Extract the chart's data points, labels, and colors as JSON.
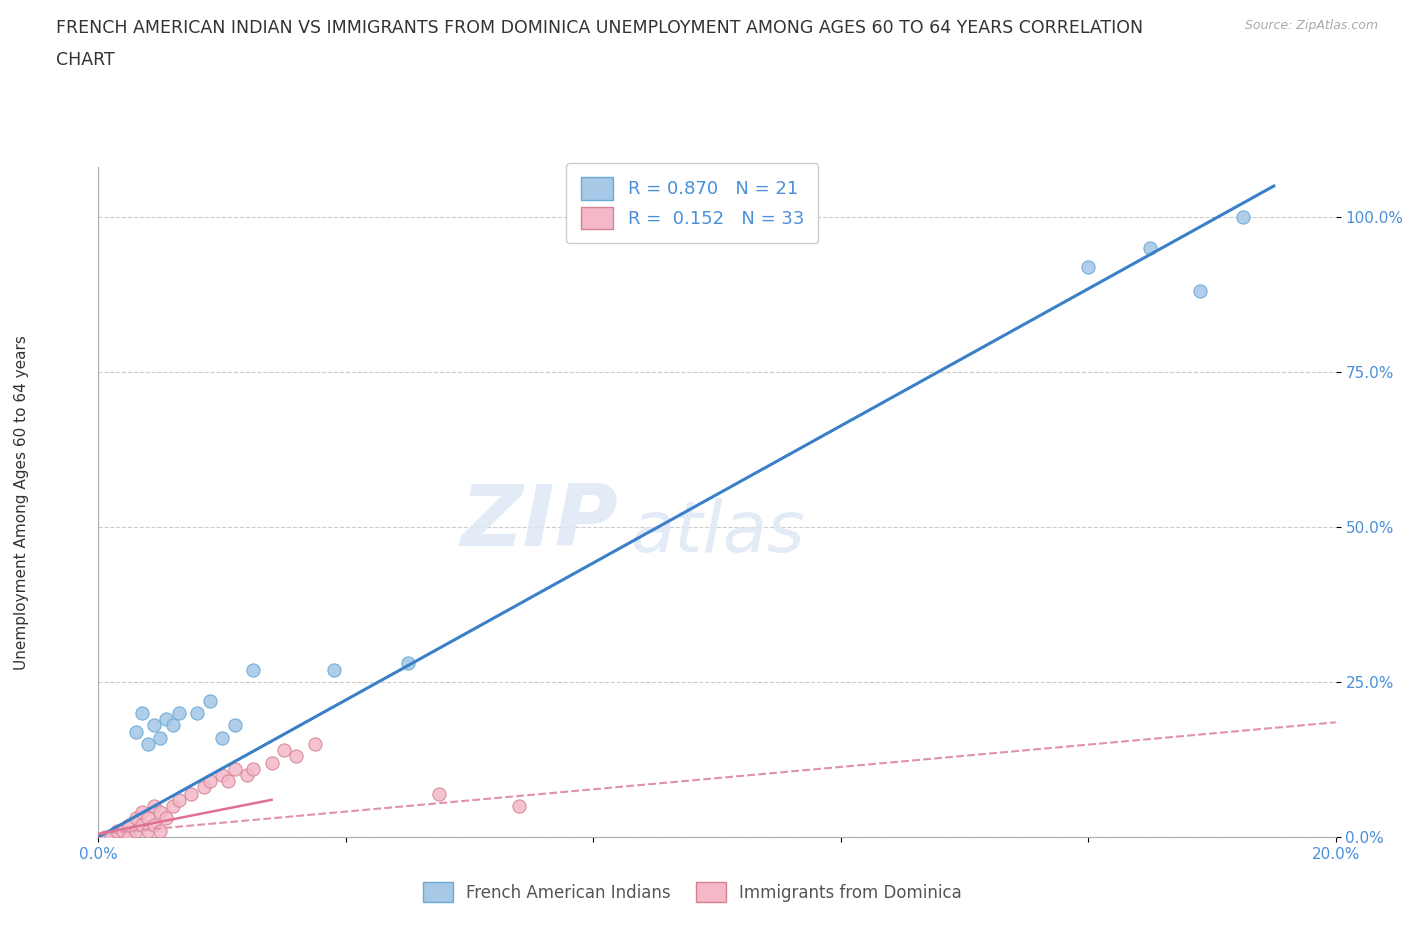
{
  "title_line1": "FRENCH AMERICAN INDIAN VS IMMIGRANTS FROM DOMINICA UNEMPLOYMENT AMONG AGES 60 TO 64 YEARS CORRELATION",
  "title_line2": "CHART",
  "source_text": "Source: ZipAtlas.com",
  "ylabel": "Unemployment Among Ages 60 to 64 years",
  "xlim": [
    0.0,
    0.2
  ],
  "ylim": [
    0.0,
    1.08
  ],
  "x_ticks": [
    0.0,
    0.04,
    0.08,
    0.12,
    0.16,
    0.2
  ],
  "y_ticks": [
    0.0,
    0.25,
    0.5,
    0.75,
    1.0
  ],
  "y_tick_labels": [
    "0.0%",
    "25.0%",
    "50.0%",
    "75.0%",
    "100.0%"
  ],
  "blue_scatter_x": [
    0.002,
    0.005,
    0.006,
    0.007,
    0.008,
    0.009,
    0.01,
    0.011,
    0.012,
    0.013,
    0.016,
    0.018,
    0.02,
    0.022,
    0.025,
    0.038,
    0.05,
    0.16,
    0.17,
    0.178,
    0.185
  ],
  "blue_scatter_y": [
    0.0,
    0.005,
    0.17,
    0.2,
    0.15,
    0.18,
    0.16,
    0.19,
    0.18,
    0.2,
    0.2,
    0.22,
    0.16,
    0.18,
    0.27,
    0.27,
    0.28,
    0.92,
    0.95,
    0.88,
    1.0
  ],
  "pink_scatter_x": [
    0.001,
    0.002,
    0.003,
    0.004,
    0.005,
    0.005,
    0.006,
    0.006,
    0.007,
    0.007,
    0.008,
    0.008,
    0.009,
    0.009,
    0.01,
    0.01,
    0.011,
    0.012,
    0.013,
    0.015,
    0.017,
    0.018,
    0.02,
    0.021,
    0.022,
    0.024,
    0.025,
    0.028,
    0.03,
    0.032,
    0.035,
    0.055,
    0.068
  ],
  "pink_scatter_y": [
    0.0,
    0.0,
    0.01,
    0.01,
    0.0,
    0.02,
    0.01,
    0.03,
    0.02,
    0.04,
    0.01,
    0.03,
    0.02,
    0.05,
    0.01,
    0.04,
    0.03,
    0.05,
    0.06,
    0.07,
    0.08,
    0.09,
    0.1,
    0.09,
    0.11,
    0.1,
    0.11,
    0.12,
    0.14,
    0.13,
    0.15,
    0.07,
    0.05
  ],
  "blue_line_x": [
    0.0,
    0.19
  ],
  "blue_line_y": [
    0.0,
    1.05
  ],
  "pink_line_x": [
    0.0,
    0.2
  ],
  "pink_line_y": [
    0.005,
    0.185
  ],
  "blue_dot_color": "#a8c8e8",
  "blue_edge_color": "#6aaad4",
  "pink_dot_color": "#f4b8c8",
  "pink_edge_color": "#d48090",
  "blue_line_color": "#3a80c8",
  "pink_line_color": "#e07090",
  "pink_dashed_color": "#e090a8",
  "R_blue": "0.870",
  "N_blue": "21",
  "R_pink": "0.152",
  "N_pink": "33",
  "legend_label_blue": "French American Indians",
  "legend_label_pink": "Immigrants from Dominica",
  "watermark_zip": "ZIP",
  "watermark_atlas": "atlas",
  "grid_color": "#cccccc",
  "background_color": "#ffffff",
  "title_fontsize": 12.5,
  "axis_label_fontsize": 11,
  "tick_fontsize": 11
}
